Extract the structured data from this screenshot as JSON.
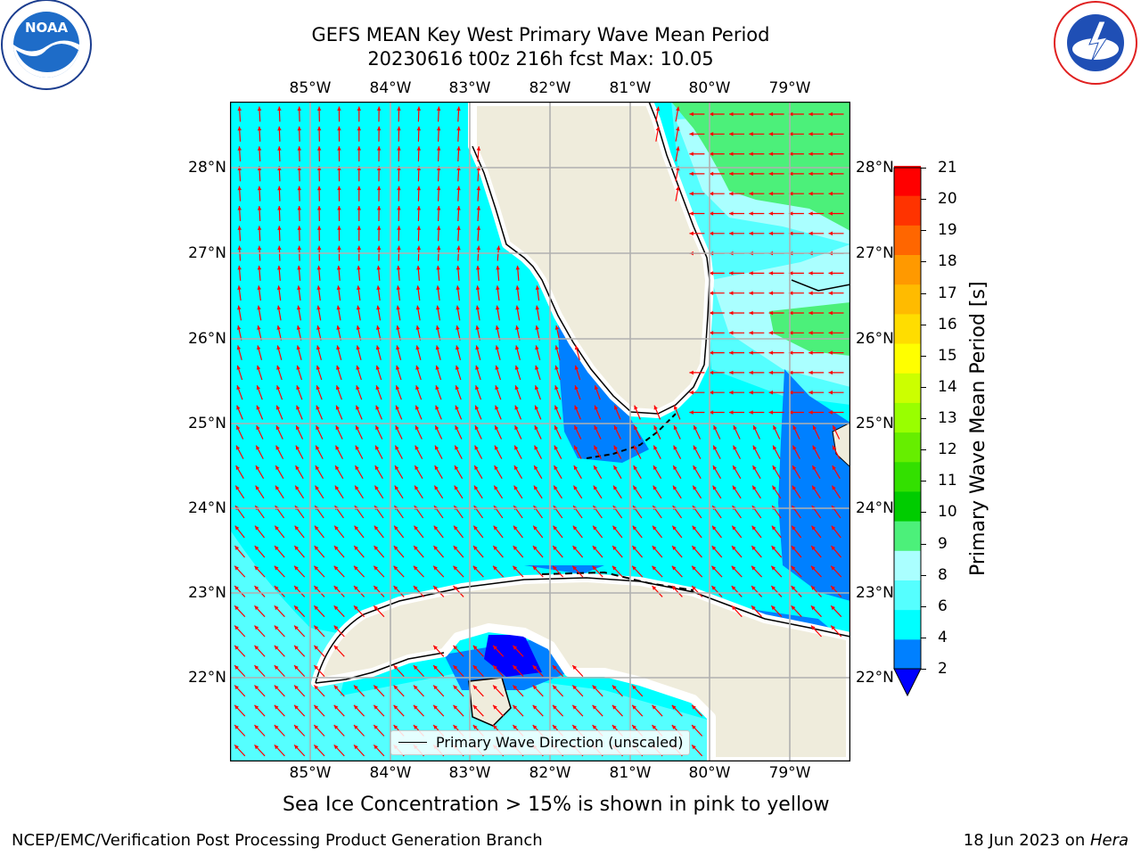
{
  "title": {
    "line1": "GEFS MEAN Key West Primary Wave Mean Period",
    "line2": "20230616 t00z 216h fcst   Max: 10.05"
  },
  "logos": {
    "left": {
      "text": "NOAA",
      "ring_text": "NATIONAL OCEANIC AND ATMOSPHERIC ADMINISTRATION · U.S. DEPARTMENT OF COMMERCE",
      "icon": "noaa-logo"
    },
    "right": {
      "ring_text": "NATIONAL WEATHER SERVICE",
      "icon": "nws-logo"
    }
  },
  "map": {
    "lon_ticks": [
      "85°W",
      "84°W",
      "83°W",
      "82°W",
      "81°W",
      "80°W",
      "79°W"
    ],
    "lat_ticks": [
      "28°N",
      "27°N",
      "26°N",
      "25°N",
      "24°N",
      "23°N",
      "22°N"
    ],
    "legend": "Primary Wave Direction (unscaled)",
    "land_color": "#efecdc",
    "arrow_color": "#ff0000",
    "grid": true
  },
  "colorbar": {
    "label": "Primary Wave Mean Period [s]",
    "levels": [
      "21",
      "20",
      "19",
      "18",
      "17",
      "16",
      "15",
      "14",
      "13",
      "12",
      "11",
      "10",
      "9",
      "8",
      "6",
      "4",
      "2"
    ],
    "colors_bottom_to_top": [
      "#0000ff",
      "#0080ff",
      "#00ffff",
      "#55ffff",
      "#aaffff",
      "#4cf07a",
      "#00cc00",
      "#33e000",
      "#66ee00",
      "#99ff00",
      "#ccff00",
      "#ffff00",
      "#ffdd00",
      "#ffbb00",
      "#ff9900",
      "#ff6600",
      "#ff3300",
      "#ff0000"
    ]
  },
  "note": "Sea Ice Concentration > 15% is shown in pink to yellow",
  "footer": {
    "left": "NCEP/EMC/Verification Post Processing Product Generation Branch",
    "date": "18 Jun 2023 on ",
    "host": "Hera"
  }
}
